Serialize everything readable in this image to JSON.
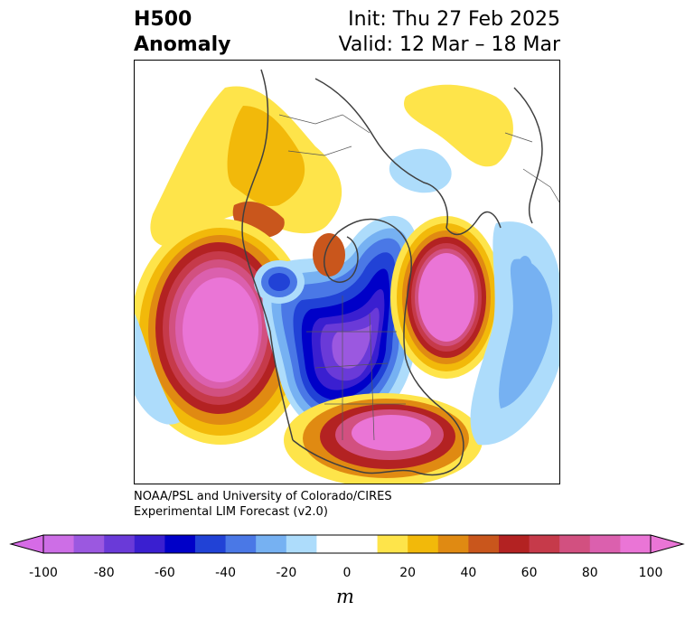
{
  "header": {
    "title_line1": "H500",
    "title_line2": "Anomaly",
    "init": "Init: Thu 27 Feb 2025",
    "valid": "Valid: 12 Mar – 18 Mar"
  },
  "credit": {
    "line1": "NOAA/PSL and University of Colorado/CIRES",
    "line2": "Experimental LIM Forecast (v2.0)"
  },
  "colorbar": {
    "unit": "m",
    "ticks": [
      "-100",
      "-80",
      "-60",
      "-40",
      "-20",
      "0",
      "20",
      "40",
      "60",
      "80",
      "100"
    ],
    "bins": [
      {
        "range": "-100 to -90",
        "color": "#cd6ee6"
      },
      {
        "range": "-90 to -80",
        "color": "#9b58e0"
      },
      {
        "range": "-80 to -70",
        "color": "#6a3ad8"
      },
      {
        "range": "-70 to -60",
        "color": "#3a1fd0"
      },
      {
        "range": "-60 to -50",
        "color": "#0000c8"
      },
      {
        "range": "-50 to -40",
        "color": "#2142d6"
      },
      {
        "range": "-40 to -30",
        "color": "#4a78e6"
      },
      {
        "range": "-30 to -20",
        "color": "#76b1f2"
      },
      {
        "range": "-20 to -10",
        "color": "#addcfb"
      },
      {
        "range": "-10 to 10",
        "color": "#ffffff"
      },
      {
        "range": "10 to 20",
        "color": "#fee44a"
      },
      {
        "range": "20 to 30",
        "color": "#f2b90a"
      },
      {
        "range": "30 to 40",
        "color": "#e08a12"
      },
      {
        "range": "40 to 50",
        "color": "#c9561c"
      },
      {
        "range": "50 to 60",
        "color": "#b32222"
      },
      {
        "range": "60 to 70",
        "color": "#c63a4a"
      },
      {
        "range": "70 to 80",
        "color": "#d25080"
      },
      {
        "range": "80 to 90",
        "color": "#db60ae"
      },
      {
        "range": "90 to 100",
        "color": "#ea75d6"
      }
    ],
    "extend_low_color": "#d66be6",
    "extend_high_color": "#ea75d6"
  }
}
